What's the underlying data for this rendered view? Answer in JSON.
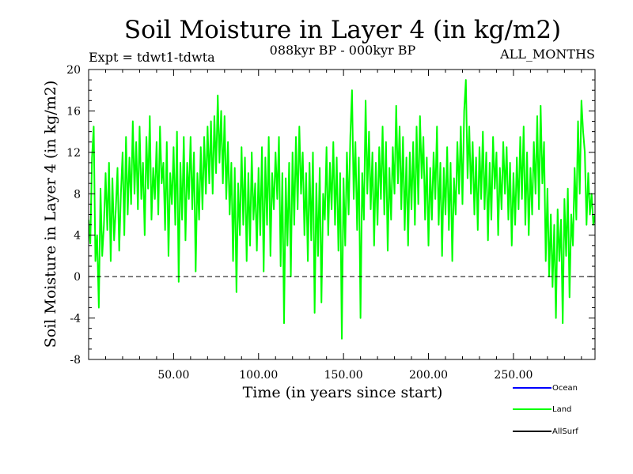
{
  "chart_data": {
    "type": "line",
    "title": "Soil Moisture in Layer 4 (in kg/m2)",
    "subtitle_left": "Expt = tdwt1-tdwta",
    "subtitle_center": "088kyr BP - 000kyr BP",
    "subtitle_right": "ALL_MONTHS",
    "xlabel": "Time (in years since start)",
    "ylabel": "Soil Moisture in Layer 4 (in kg/m2)",
    "xlim": [
      0,
      298
    ],
    "ylim": [
      -8,
      20
    ],
    "x_ticks": [
      50,
      100,
      150,
      200,
      250
    ],
    "x_tick_labels": [
      "50.00",
      "100.00",
      "150.00",
      "200.00",
      "250.00"
    ],
    "y_ticks": [
      -8,
      -4,
      0,
      4,
      8,
      12,
      16,
      20
    ],
    "y_tick_labels": [
      "-8",
      "-4",
      "0",
      "4",
      "8",
      "12",
      "16",
      "20"
    ],
    "zero_line": 0,
    "series": [
      {
        "name": "Land",
        "color": "#00ff00",
        "x_start": 0,
        "x_step": 1,
        "values": [
          5.5,
          3.2,
          11.5,
          14.5,
          1.5,
          4.0,
          -3.0,
          8.5,
          2.0,
          5.0,
          10.0,
          4.5,
          11.0,
          1.5,
          9.5,
          3.5,
          6.5,
          10.5,
          2.5,
          8.0,
          12.0,
          4.0,
          13.5,
          6.0,
          11.5,
          7.0,
          15.0,
          8.0,
          13.0,
          6.5,
          14.5,
          7.5,
          11.0,
          4.0,
          13.5,
          8.5,
          15.5,
          5.5,
          10.5,
          7.5,
          13.0,
          6.0,
          14.5,
          9.0,
          11.0,
          4.5,
          13.0,
          2.0,
          10.0,
          7.0,
          12.5,
          5.0,
          14.0,
          -0.5,
          11.0,
          5.5,
          13.5,
          3.5,
          11.0,
          7.5,
          13.5,
          6.5,
          12.0,
          0.5,
          10.0,
          5.5,
          12.5,
          6.5,
          13.5,
          8.0,
          14.5,
          9.0,
          15.0,
          8.0,
          15.5,
          10.0,
          17.5,
          11.0,
          16.0,
          9.0,
          15.5,
          7.5,
          13.0,
          6.0,
          11.0,
          1.5,
          10.5,
          -1.5,
          9.0,
          4.0,
          12.5,
          5.0,
          11.5,
          1.5,
          10.0,
          3.0,
          12.0,
          5.5,
          9.0,
          2.5,
          10.5,
          4.0,
          12.5,
          0.5,
          11.5,
          5.0,
          13.5,
          2.0,
          10.0,
          6.5,
          12.0,
          7.5,
          13.5,
          1.0,
          10.0,
          -4.5,
          9.5,
          3.0,
          11.0,
          0.0,
          12.0,
          5.0,
          13.5,
          6.5,
          14.5,
          8.0,
          12.0,
          4.0,
          10.0,
          1.5,
          11.0,
          3.5,
          12.0,
          -3.5,
          9.0,
          2.0,
          10.5,
          -2.5,
          8.0,
          5.5,
          12.5,
          4.0,
          11.0,
          6.5,
          13.0,
          5.0,
          11.5,
          2.5,
          10.0,
          -6.0,
          9.5,
          3.0,
          12.0,
          6.0,
          13.5,
          18.0,
          7.5,
          13.0,
          4.5,
          11.5,
          -4.0,
          10.0,
          5.5,
          17.0,
          8.0,
          14.0,
          6.5,
          12.0,
          3.0,
          11.0,
          5.0,
          12.5,
          7.5,
          14.5,
          6.0,
          13.0,
          2.5,
          10.5,
          5.5,
          12.5,
          8.0,
          16.5,
          9.0,
          14.5,
          6.5,
          13.5,
          4.5,
          11.5,
          3.0,
          12.0,
          6.5,
          13.0,
          5.0,
          14.5,
          7.0,
          15.5,
          9.5,
          13.5,
          5.5,
          11.5,
          3.0,
          10.5,
          5.5,
          12.0,
          7.5,
          14.5,
          5.0,
          11.0,
          2.0,
          10.5,
          6.0,
          12.5,
          4.5,
          11.0,
          1.5,
          9.5,
          6.0,
          13.0,
          8.0,
          14.5,
          7.0,
          16.0,
          19.0,
          9.5,
          14.5,
          8.0,
          13.0,
          6.0,
          11.5,
          4.5,
          12.5,
          7.5,
          14.0,
          6.5,
          12.0,
          3.5,
          11.0,
          5.5,
          13.5,
          8.5,
          12.0,
          4.0,
          10.5,
          6.5,
          13.0,
          8.0,
          12.5,
          5.5,
          11.0,
          3.0,
          10.0,
          5.0,
          11.5,
          6.5,
          13.5,
          7.5,
          14.5,
          5.0,
          12.0,
          4.0,
          10.5,
          6.0,
          13.0,
          8.0,
          15.5,
          6.5,
          16.5,
          9.0,
          13.0,
          1.5,
          8.5,
          0.0,
          6.0,
          -1.0,
          5.0,
          -4.0,
          6.5,
          1.5,
          5.5,
          -4.5,
          7.5,
          2.0,
          8.5,
          -2.0,
          6.0,
          3.0,
          10.5,
          5.5,
          15.0,
          8.0,
          17.0,
          14.0,
          12.0,
          5.0,
          10.0,
          6.0,
          8.0,
          5.0,
          6.0,
          5.0
        ]
      },
      {
        "name": "Ocean",
        "color": "#0000ff",
        "values": []
      },
      {
        "name": "AllSurf",
        "color": "#000000",
        "values": []
      }
    ],
    "legend": [
      "Ocean",
      "Land",
      "AllSurf"
    ],
    "legend_position": "bottom-right",
    "grid": false
  }
}
